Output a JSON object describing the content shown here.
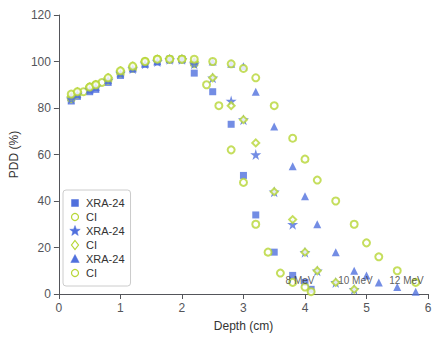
{
  "chart_data": {
    "type": "scatter",
    "xlabel": "Depth (cm)",
    "ylabel": "PDD (%)",
    "xlim": [
      0,
      6
    ],
    "ylim": [
      0,
      120
    ],
    "xticks": [
      0,
      1,
      2,
      3,
      4,
      5,
      6
    ],
    "yticks": [
      0,
      20,
      40,
      60,
      80,
      100,
      120
    ],
    "grid": false,
    "legend": "lower left",
    "series": [
      {
        "name": "XRA-24",
        "marker": "filled-square",
        "x": [
          0.2,
          0.3,
          0.5,
          0.6,
          0.8,
          1.0,
          1.2,
          1.4,
          1.6,
          1.8,
          2.0,
          2.2,
          2.5,
          2.8,
          3.0,
          3.2,
          3.5,
          3.8,
          4.0,
          4.1
        ],
        "values": [
          83,
          85,
          87,
          88,
          91,
          94,
          97,
          99,
          100,
          101,
          101,
          95,
          87,
          73,
          51,
          34,
          18,
          8,
          5,
          2
        ]
      },
      {
        "name": "CI",
        "marker": "open-circle",
        "x": [
          0.2,
          0.3,
          0.4,
          0.5,
          0.6,
          0.7,
          0.8,
          1.0,
          1.2,
          1.4,
          1.6,
          1.8,
          2.0,
          2.2,
          2.4,
          2.6,
          2.8,
          3.0,
          3.2,
          3.4,
          3.6,
          3.8,
          4.0,
          4.1
        ],
        "values": [
          84,
          86,
          87,
          89,
          90,
          91,
          92,
          95,
          97,
          100,
          101,
          101,
          101,
          99,
          90,
          81,
          62,
          48,
          30,
          18,
          9,
          5,
          3,
          1
        ]
      },
      {
        "name": "XRA-24",
        "marker": "filled-star",
        "x": [
          0.2,
          0.3,
          0.5,
          0.6,
          0.8,
          1.0,
          1.2,
          1.4,
          1.6,
          1.8,
          2.0,
          2.2,
          2.5,
          2.8,
          3.0,
          3.2,
          3.5,
          3.8,
          4.0,
          4.2,
          4.5,
          4.8
        ],
        "values": [
          84,
          86,
          88,
          89,
          92,
          95,
          97,
          99,
          100,
          101,
          101,
          99,
          93,
          83,
          75,
          60,
          44,
          30,
          18,
          10,
          5,
          2
        ]
      },
      {
        "name": "CI",
        "marker": "open-diamond",
        "x": [
          0.2,
          0.3,
          0.5,
          0.6,
          0.8,
          1.0,
          1.2,
          1.4,
          1.6,
          1.8,
          2.0,
          2.2,
          2.5,
          2.8,
          3.0,
          3.2,
          3.5,
          3.8,
          4.0,
          4.2,
          4.5,
          4.8
        ],
        "values": [
          85,
          87,
          89,
          90,
          93,
          96,
          98,
          100,
          101,
          101,
          101,
          100,
          93,
          81,
          75,
          65,
          44,
          32,
          18,
          10,
          5,
          2
        ]
      },
      {
        "name": "XRA-24",
        "marker": "filled-triangle",
        "x": [
          0.2,
          0.3,
          0.5,
          0.6,
          0.8,
          1.0,
          1.2,
          1.4,
          1.6,
          1.8,
          2.0,
          2.2,
          2.5,
          2.8,
          3.0,
          3.2,
          3.5,
          3.8,
          4.0,
          4.2,
          4.5,
          4.8,
          5.0,
          5.2,
          5.5,
          5.8
        ],
        "values": [
          85,
          86,
          88,
          89,
          92,
          95,
          97,
          99,
          100,
          101,
          101,
          100,
          100,
          99,
          98,
          87,
          72,
          55,
          42,
          30,
          18,
          10,
          8,
          5,
          3,
          1
        ]
      },
      {
        "name": "CI",
        "marker": "open-circle",
        "x": [
          0.2,
          0.3,
          0.5,
          0.6,
          0.8,
          1.0,
          1.2,
          1.4,
          1.6,
          1.8,
          2.0,
          2.2,
          2.5,
          2.8,
          3.0,
          3.2,
          3.5,
          3.8,
          4.0,
          4.2,
          4.5,
          4.8,
          5.0,
          5.2,
          5.5,
          5.8
        ],
        "values": [
          86,
          87,
          89,
          90,
          93,
          96,
          98,
          100,
          101,
          101,
          101,
          101,
          100,
          99,
          97,
          93,
          81,
          67,
          58,
          49,
          40,
          30,
          22,
          16,
          10,
          5
        ]
      }
    ],
    "annotations": [
      {
        "text": "8 MeV",
        "x": 3.92,
        "y": 3
      },
      {
        "text": "10 MeV",
        "x": 4.82,
        "y": 3
      },
      {
        "text": "12 MeV",
        "x": 5.65,
        "y": 3
      }
    ]
  }
}
